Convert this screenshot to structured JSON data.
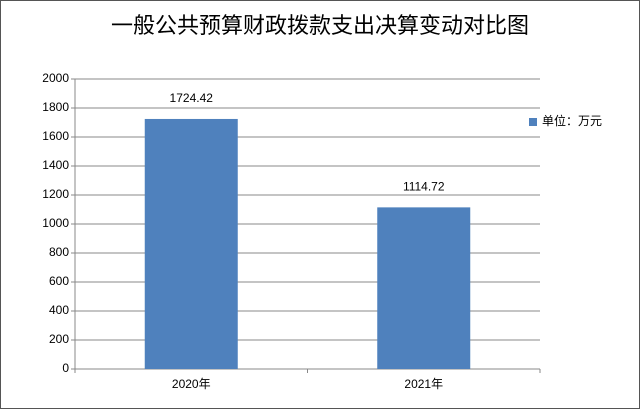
{
  "chart_data": {
    "type": "bar",
    "title": "一般公共预算财政拨款支出决算变动对比图",
    "categories": [
      "2020年",
      "2021年"
    ],
    "series": [
      {
        "name": "单位：万元",
        "color": "#4f81bd",
        "values": [
          1724.42,
          1114.72
        ]
      }
    ],
    "ylim": [
      0,
      2000
    ],
    "yticks": [
      0,
      200,
      400,
      600,
      800,
      1000,
      1200,
      1400,
      1600,
      1800,
      2000
    ],
    "grid": true,
    "legend": "right"
  }
}
